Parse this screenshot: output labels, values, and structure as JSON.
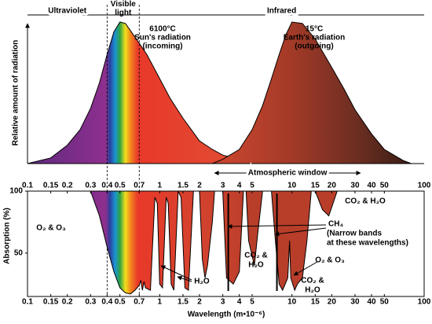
{
  "chart_data": [
    {
      "type": "area",
      "ylabel": "Relative amount of radiation",
      "xscale": "log",
      "xlim": [
        0.1,
        100
      ],
      "ylim": [
        0,
        100
      ],
      "xticks": [
        0.1,
        0.15,
        0.2,
        0.3,
        0.4,
        0.5,
        0.7,
        1,
        1.5,
        2,
        3,
        4,
        5,
        10,
        15,
        20,
        30,
        40,
        50,
        100
      ],
      "regions": [
        "Ultraviolet",
        "Visible light",
        "Infrared"
      ],
      "region_edges": [
        0.4,
        0.7
      ],
      "window": {
        "label": "Atmospheric window",
        "xrange": [
          2.6,
          33
        ]
      },
      "series": [
        {
          "temperature": "6100°C",
          "name": "Sun's radiation",
          "direction": "(incoming)",
          "x": [
            0.1,
            0.15,
            0.2,
            0.25,
            0.3,
            0.35,
            0.4,
            0.45,
            0.5,
            0.55,
            0.6,
            0.7,
            0.8,
            1,
            1.2,
            1.5,
            2,
            2.5,
            3,
            4,
            5,
            6
          ],
          "values": [
            0,
            4,
            13,
            24,
            39,
            57,
            77,
            93,
            100,
            99,
            94,
            85,
            77,
            60,
            46,
            32,
            16,
            10,
            6,
            3,
            1,
            0
          ],
          "color_stops": [
            {
              "x": 0.1,
              "color": "#5e2a7e"
            },
            {
              "x": 0.39,
              "color": "#8e2f8e"
            },
            {
              "x": 0.42,
              "color": "#2c3f9e"
            },
            {
              "x": 0.46,
              "color": "#1b93d2"
            },
            {
              "x": 0.5,
              "color": "#2ea344"
            },
            {
              "x": 0.55,
              "color": "#f3e01b"
            },
            {
              "x": 0.6,
              "color": "#f28a1d"
            },
            {
              "x": 0.68,
              "color": "#e8392a"
            },
            {
              "x": 3,
              "color": "#e24a32"
            }
          ]
        },
        {
          "temperature": "15°C",
          "name": "Earth's radiation",
          "direction": "(outgoing)",
          "x": [
            2.5,
            3,
            4,
            5,
            6,
            7,
            8,
            9,
            10,
            12,
            15,
            20,
            25,
            30,
            40,
            50,
            70,
            80
          ],
          "values": [
            0,
            3,
            10,
            24,
            41,
            60,
            77,
            91,
            100,
            99,
            88,
            68,
            52,
            38,
            21,
            10,
            2,
            0
          ],
          "color_stops": [
            {
              "x": 3,
              "color": "#c9452e"
            },
            {
              "x": 10,
              "color": "#a33a28"
            },
            {
              "x": 30,
              "color": "#6e2e22"
            },
            {
              "x": 80,
              "color": "#3a1e16"
            }
          ]
        }
      ]
    },
    {
      "type": "area",
      "fill_to": "top",
      "ylabel": "Absorption (%)",
      "xlabel": "Wavelength (m•10⁻⁶)",
      "xscale": "log",
      "xlim": [
        0.1,
        100
      ],
      "ylim": [
        15,
        100
      ],
      "yticks": [
        50,
        100
      ],
      "xticks": [
        0.1,
        0.15,
        0.2,
        0.3,
        0.4,
        0.5,
        0.7,
        1,
        1.5,
        2,
        3,
        4,
        5,
        10,
        15,
        20,
        30,
        40,
        50,
        100
      ],
      "ch4_bands": [
        3.3,
        7.7
      ],
      "series": [
        {
          "x": [
            0.1,
            0.3,
            0.35,
            0.4,
            0.45,
            0.5,
            0.55,
            0.6,
            0.65,
            0.7,
            0.72,
            0.74,
            0.76,
            0.78,
            0.85,
            0.92,
            0.96,
            1,
            1.05,
            1.12,
            1.16,
            1.22,
            1.28,
            1.38,
            1.45,
            1.55,
            1.65,
            1.8,
            2,
            2.1,
            2.2,
            2.3,
            2.5,
            2.6,
            3,
            3.2,
            3.6,
            4,
            4.3,
            4.5,
            4.7,
            5.2,
            5.5,
            6,
            7,
            7.5,
            8,
            8.5,
            9.3,
            9.6,
            9.8,
            10.5,
            11,
            12,
            13,
            14,
            15,
            17,
            19,
            22,
            100
          ],
          "values": [
            100,
            100,
            80,
            55,
            35,
            22,
            18,
            17,
            20,
            24,
            28,
            20,
            27,
            22,
            20,
            95,
            90,
            25,
            22,
            95,
            90,
            25,
            20,
            100,
            95,
            22,
            20,
            100,
            100,
            45,
            30,
            40,
            75,
            100,
            100,
            30,
            25,
            35,
            100,
            100,
            60,
            40,
            65,
            100,
            100,
            60,
            25,
            20,
            30,
            60,
            30,
            20,
            25,
            30,
            60,
            100,
            100,
            85,
            80,
            100,
            100
          ],
          "color_stops": [
            {
              "x": 0.1,
              "color": "#5e2a7e"
            },
            {
              "x": 0.39,
              "color": "#8e2f8e"
            },
            {
              "x": 0.42,
              "color": "#2c3f9e"
            },
            {
              "x": 0.46,
              "color": "#1b93d2"
            },
            {
              "x": 0.5,
              "color": "#2ea344"
            },
            {
              "x": 0.55,
              "color": "#f3e01b"
            },
            {
              "x": 0.6,
              "color": "#f28a1d"
            },
            {
              "x": 0.68,
              "color": "#e8392a"
            },
            {
              "x": 2,
              "color": "#d4432e"
            },
            {
              "x": 5,
              "color": "#b83e2a"
            },
            {
              "x": 100,
              "color": "#b83e2a"
            }
          ]
        }
      ],
      "annotations": [
        {
          "lines": [
            "O₂ & O₃"
          ]
        },
        {
          "lines": [
            "H₂O"
          ]
        },
        {
          "lines": [
            "CO₂ & H₂O"
          ]
        },
        {
          "lines": [
            "CH₄",
            "(Narrow bands",
            "at these wavelengths)"
          ]
        },
        {
          "lines": [
            "CO₂ &",
            "H₂O"
          ]
        },
        {
          "lines": [
            "O₂ & O₃"
          ]
        },
        {
          "lines": [
            "CO₂ &",
            "H₂O"
          ]
        }
      ]
    }
  ]
}
